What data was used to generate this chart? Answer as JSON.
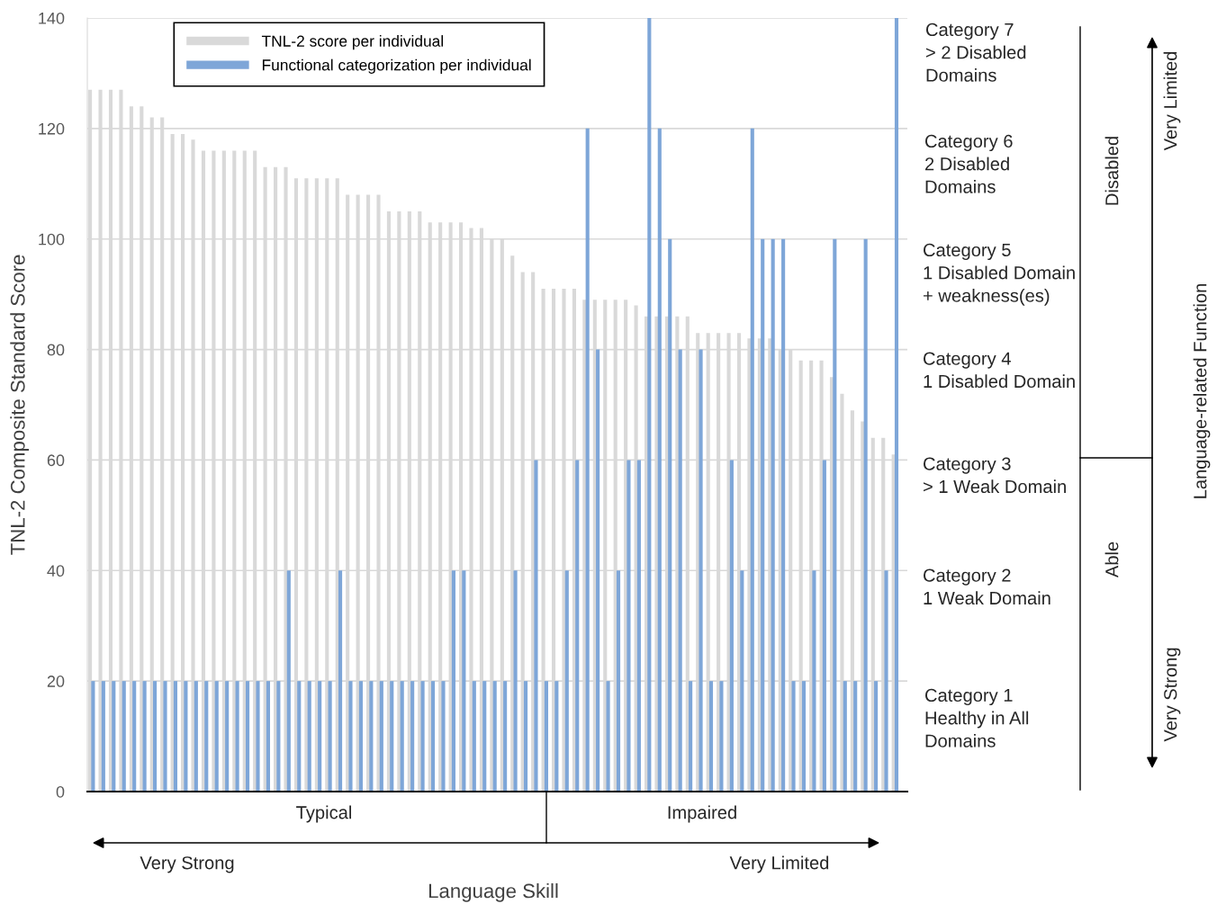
{
  "chart_data": {
    "type": "bar",
    "categories": [
      null,
      null,
      null,
      null,
      null,
      null,
      null,
      null,
      null,
      null,
      null,
      null,
      null,
      null,
      null,
      null,
      null,
      null,
      null,
      null,
      null,
      null,
      null,
      null,
      null,
      null,
      null,
      null,
      null,
      null,
      null,
      null,
      null,
      null,
      null,
      null,
      null,
      null,
      null,
      null,
      null,
      null,
      null,
      null,
      null,
      null,
      null,
      null,
      null,
      null,
      null,
      null,
      null,
      null,
      null,
      null,
      null,
      null,
      null,
      null,
      null,
      null,
      null,
      null,
      null,
      null,
      null,
      null,
      null,
      null,
      null,
      null,
      null,
      null,
      null,
      null,
      null,
      null,
      null
    ],
    "series": [
      {
        "name": "TNL-2 score per individual",
        "color": "#d9d9d9",
        "values": [
          127,
          127,
          127,
          127,
          124,
          124,
          122,
          122,
          119,
          119,
          118,
          116,
          116,
          116,
          116,
          116,
          116,
          113,
          113,
          113,
          111,
          111,
          111,
          111,
          111,
          108,
          108,
          108,
          108,
          105,
          105,
          105,
          105,
          103,
          103,
          103,
          103,
          102,
          102,
          100,
          100,
          97,
          94,
          94,
          91,
          91,
          91,
          91,
          89,
          89,
          89,
          89,
          89,
          88,
          86,
          86,
          86,
          86,
          86,
          83,
          83,
          83,
          83,
          83,
          82,
          82,
          82,
          80,
          80,
          78,
          78,
          78,
          75,
          72,
          69,
          67,
          64,
          64,
          61
        ]
      },
      {
        "name": "Functional categorization per individual",
        "color": "#7ea6d8",
        "values": [
          20,
          20,
          20,
          20,
          20,
          20,
          20,
          20,
          20,
          20,
          20,
          20,
          20,
          20,
          20,
          20,
          20,
          20,
          20,
          40,
          20,
          20,
          20,
          20,
          40,
          20,
          20,
          20,
          20,
          20,
          20,
          20,
          20,
          20,
          20,
          40,
          40,
          20,
          20,
          20,
          20,
          40,
          20,
          60,
          20,
          20,
          40,
          60,
          120,
          80,
          20,
          40,
          60,
          60,
          140,
          120,
          100,
          80,
          20,
          80,
          20,
          20,
          60,
          40,
          120,
          100,
          100,
          100,
          20,
          20,
          40,
          60,
          100,
          20,
          20,
          100,
          20,
          40,
          140
        ]
      }
    ],
    "ylim": [
      0,
      140
    ],
    "yticks": [
      0,
      20,
      40,
      60,
      80,
      100,
      120,
      140
    ],
    "grid": "y",
    "legend": "top left",
    "ylabel": "TNL-2 Composite Standard Score",
    "xlabel": "Language Skill",
    "annotations": [
      "Category 7\n> 2 Disabled\nDomains",
      "Category 6\n2 Disabled\nDomains",
      "Category 5\n1 Disabled Domain\n+ weakness(es)",
      "Category 4\n1 Disabled Domain",
      "Category 3\n> 1 Weak Domain",
      "Category 2\n1 Weak Domain",
      "Category 1\nHealthy in All\nDomains",
      "Disabled",
      "Able",
      "Very Limited",
      "Very Strong",
      "Language-related Function",
      "Typical",
      "Impaired",
      "Very Strong",
      "Very Limited"
    ]
  }
}
